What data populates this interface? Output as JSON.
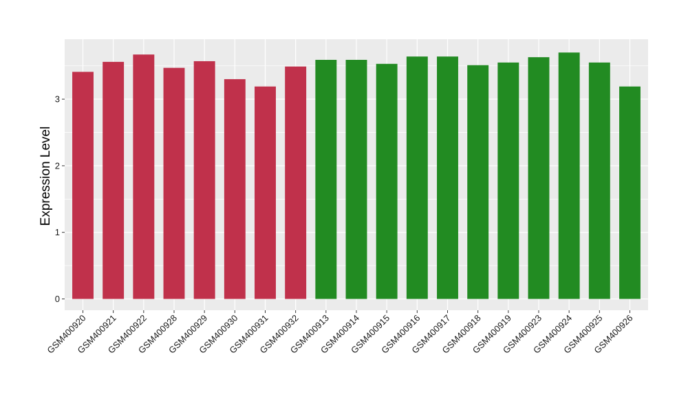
{
  "chart_data": {
    "type": "bar",
    "title": "",
    "xlabel": "",
    "ylabel": "Expression Level",
    "ylim": [
      -0.17,
      3.9
    ],
    "yticks": [
      0,
      1,
      2,
      3
    ],
    "grid": true,
    "legend": "none",
    "categories": [
      "GSM400920",
      "GSM400921",
      "GSM400922",
      "GSM400928",
      "GSM400929",
      "GSM400930",
      "GSM400931",
      "GSM400932",
      "GSM400913",
      "GSM400914",
      "GSM400915",
      "GSM400916",
      "GSM400917",
      "GSM400918",
      "GSM400919",
      "GSM400923",
      "GSM400924",
      "GSM400925",
      "GSM400926"
    ],
    "values": [
      3.41,
      3.56,
      3.67,
      3.47,
      3.57,
      3.3,
      3.19,
      3.49,
      3.59,
      3.59,
      3.53,
      3.64,
      3.64,
      3.51,
      3.55,
      3.63,
      3.7,
      3.55,
      3.19
    ],
    "groups": [
      0,
      0,
      0,
      0,
      0,
      0,
      0,
      0,
      1,
      1,
      1,
      1,
      1,
      1,
      1,
      1,
      1,
      1,
      1
    ],
    "group_colors": [
      "#C0314B",
      "#228B22"
    ],
    "panel_color": "#EBEBEB",
    "grid_color": "#FFFFFF"
  }
}
